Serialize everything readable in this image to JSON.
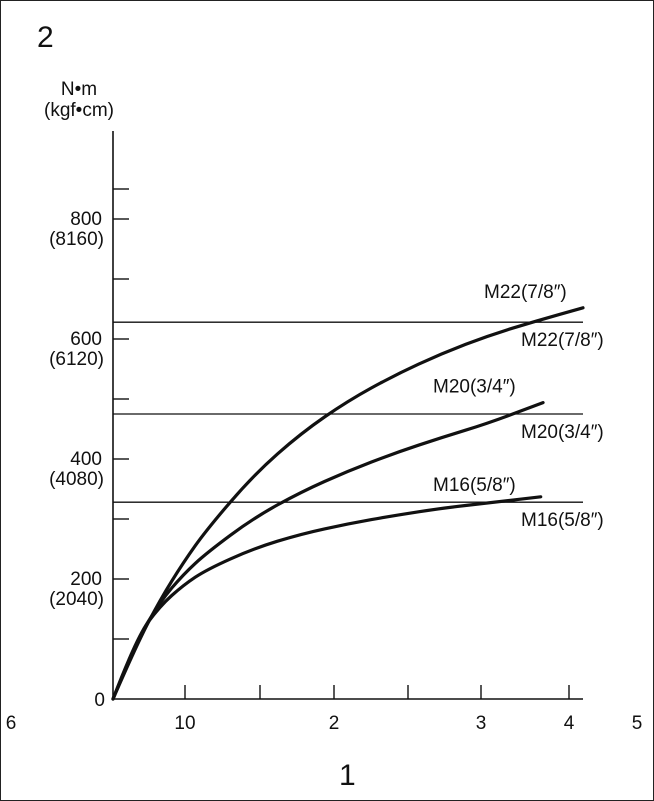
{
  "panel_number": "2",
  "bottom_label": "1",
  "chart_data": {
    "type": "line",
    "ylabel_lines": [
      "N•m",
      "(kgf•cm)"
    ],
    "ylim": [
      0,
      900
    ],
    "xlim": [
      6,
      5
    ],
    "y_ticks_minor": [
      100,
      300,
      500,
      700,
      850
    ],
    "y_tick_labels": [
      {
        "value": 0,
        "main": "0",
        "sub": ""
      },
      {
        "value": 200,
        "main": "200",
        "sub": "(2040)"
      },
      {
        "value": 400,
        "main": "400",
        "sub": "(4080)"
      },
      {
        "value": 600,
        "main": "600",
        "sub": "(6120)"
      },
      {
        "value": 800,
        "main": "800",
        "sub": "(8160)"
      }
    ],
    "x_ticks": [
      {
        "label": "6",
        "labelled": true,
        "on_axis": false
      },
      {
        "label": "10",
        "labelled": true,
        "on_axis": true
      },
      {
        "label": "",
        "labelled": false,
        "on_axis": true
      },
      {
        "label": "2",
        "labelled": true,
        "on_axis": true
      },
      {
        "label": "",
        "labelled": false,
        "on_axis": true
      },
      {
        "label": "3",
        "labelled": true,
        "on_axis": true
      },
      {
        "label": "4",
        "labelled": true,
        "on_axis": true
      },
      {
        "label": "5",
        "labelled": true,
        "on_axis": false
      }
    ],
    "series": [
      {
        "name": "M22(7/8″)",
        "limit_label": "M22(7/8″)",
        "limit": 628,
        "color": "#111111",
        "points": [
          [
            0,
            0
          ],
          [
            0.05,
            90
          ],
          [
            0.1,
            165
          ],
          [
            0.15,
            228
          ],
          [
            0.2,
            283
          ],
          [
            0.3,
            374
          ],
          [
            0.4,
            443
          ],
          [
            0.5,
            497
          ],
          [
            0.6,
            540
          ],
          [
            0.7,
            576
          ],
          [
            0.8,
            606
          ],
          [
            0.9,
            630
          ],
          [
            1.0,
            652
          ]
        ]
      },
      {
        "name": "M20(3/4″)",
        "limit_label": "M20(3/4″)",
        "limit": 475,
        "color": "#111111",
        "points": [
          [
            0,
            0
          ],
          [
            0.05,
            96
          ],
          [
            0.1,
            162
          ],
          [
            0.15,
            208
          ],
          [
            0.2,
            244
          ],
          [
            0.3,
            302
          ],
          [
            0.4,
            345
          ],
          [
            0.5,
            380
          ],
          [
            0.6,
            410
          ],
          [
            0.7,
            436
          ],
          [
            0.8,
            460
          ],
          [
            0.915,
            494
          ]
        ]
      },
      {
        "name": "M16(5/8″)",
        "limit_label": "M16(5/8″)",
        "limit": 328,
        "color": "#111111",
        "points": [
          [
            0,
            0
          ],
          [
            0.05,
            102
          ],
          [
            0.1,
            155
          ],
          [
            0.15,
            190
          ],
          [
            0.2,
            216
          ],
          [
            0.3,
            251
          ],
          [
            0.4,
            275
          ],
          [
            0.5,
            292
          ],
          [
            0.6,
            306
          ],
          [
            0.7,
            318
          ],
          [
            0.8,
            327
          ],
          [
            0.91,
            337
          ]
        ]
      }
    ]
  }
}
